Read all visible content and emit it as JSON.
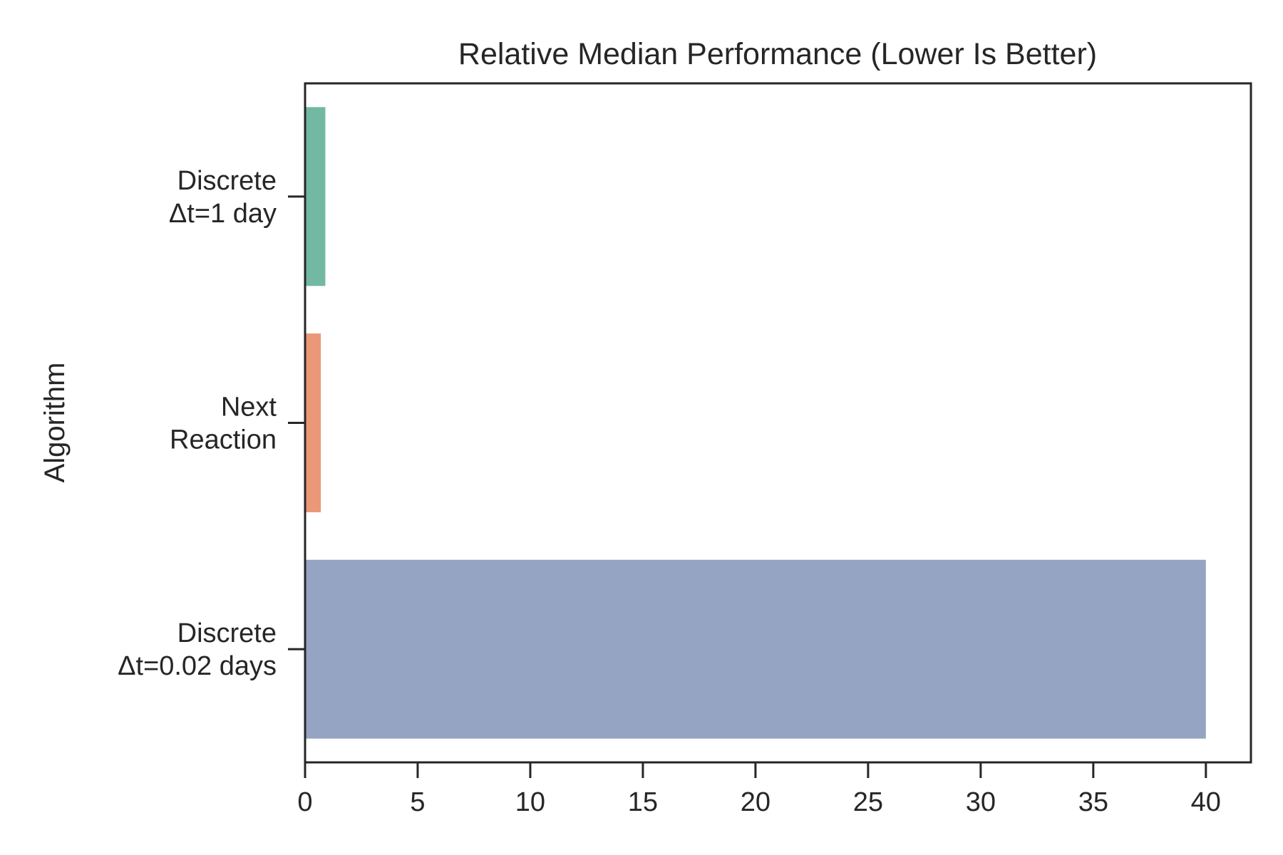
{
  "chart_data": {
    "type": "bar",
    "orientation": "horizontal",
    "title": "Relative Median Performance (Lower Is Better)",
    "xlabel": "",
    "ylabel": "Algorithm",
    "categories": [
      [
        "Discrete",
        "Δt=1 day"
      ],
      [
        "Next",
        "Reaction"
      ],
      [
        "Discrete",
        "Δt=0.02 days"
      ]
    ],
    "values": [
      0.9,
      0.7,
      40
    ],
    "colors": [
      "#72b8a2",
      "#eb9878",
      "#95a4c2"
    ],
    "xlim": [
      0,
      42
    ],
    "xticks": [
      0,
      5,
      10,
      15,
      20,
      25,
      30,
      35,
      40
    ],
    "grid": false
  }
}
